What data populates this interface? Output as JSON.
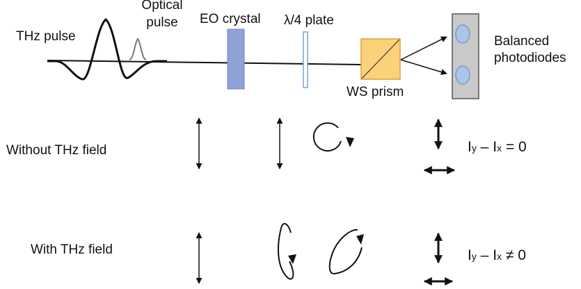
{
  "setup": {
    "thz_pulse_label": "THz pulse",
    "optical_pulse_label_line1": "Optical",
    "optical_pulse_label_line2": "pulse",
    "eo_crystal_label": "EO crystal",
    "waveplate_label": "λ/4 plate",
    "prism_label": "WS prism",
    "detector_label_line1": "Balanced",
    "detector_label_line2": "photodiodes"
  },
  "rows": [
    {
      "label": "Without THz field",
      "formula": {
        "lhs_a": "I",
        "sub_a": "y",
        "dash": " – ",
        "lhs_b": "I",
        "sub_b": "x",
        "rhs": " = 0"
      }
    },
    {
      "label": "With THz field",
      "formula": {
        "lhs_a": "I",
        "sub_a": "y",
        "dash": " – ",
        "lhs_b": "I",
        "sub_b": "x",
        "rhs": " ≠ 0"
      }
    }
  ],
  "colors": {
    "crystal_fill": "#8ea2d8",
    "crystal_edge": "#6f85c6",
    "waveplate_edge": "#7aa2d6",
    "prism_fill": "#fbd27a",
    "prism_edge": "#d79f3a",
    "detector_fill": "#c9c9c9",
    "detector_edge": "#555555",
    "photodiode_fill": "#a9c5ea",
    "photodiode_edge": "#6d8fbf",
    "optical_pulse": "#777777",
    "line": "#111111"
  }
}
